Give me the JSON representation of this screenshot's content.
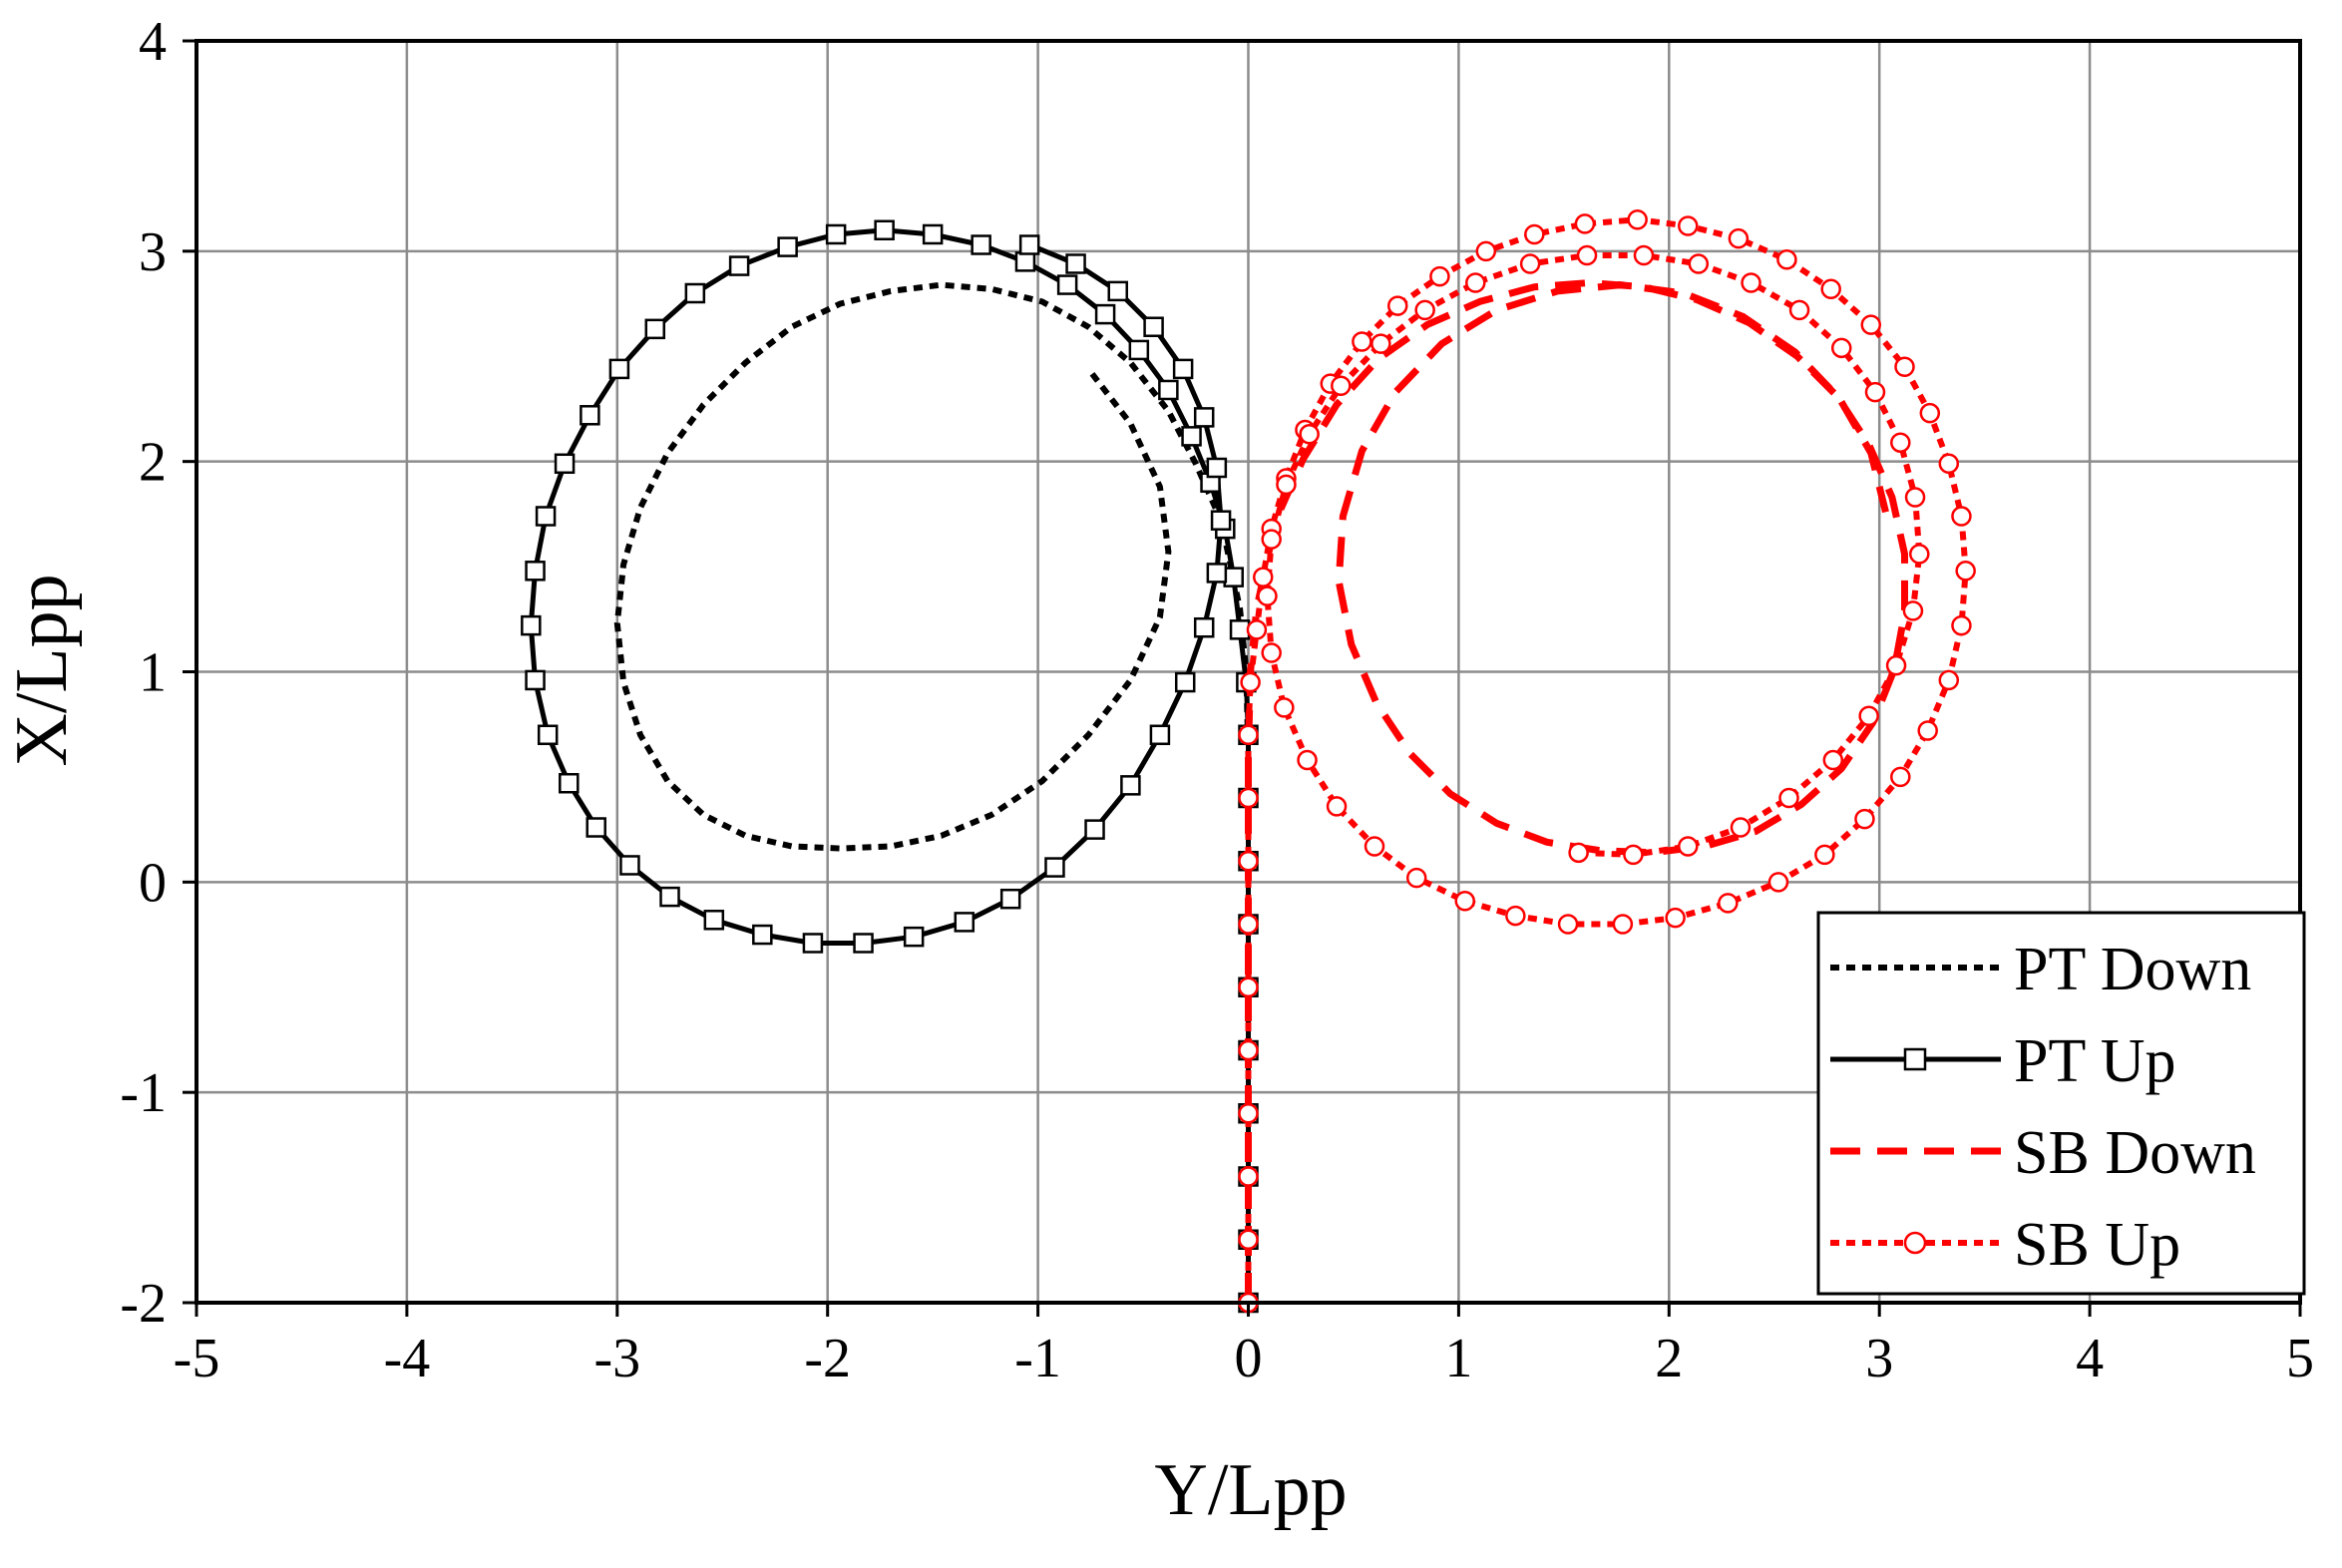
{
  "chart_data": {
    "type": "scatter",
    "title": "",
    "xlabel": "Y/Lpp",
    "ylabel": "X/Lpp",
    "xlim": [
      -5,
      5
    ],
    "ylim": [
      -2,
      4
    ],
    "xticks": [
      "-5",
      "-4",
      "-3",
      "-2",
      "-1",
      "0",
      "1",
      "2",
      "3",
      "4",
      "5"
    ],
    "yticks": [
      "-2",
      "-1",
      "0",
      "1",
      "2",
      "3",
      "4"
    ],
    "grid": true,
    "legend_position": "bottom-right",
    "series": [
      {
        "name": "PT Down",
        "color": "#000000",
        "line_style": "dotted",
        "marker": "none",
        "points": [
          [
            0,
            -2
          ],
          [
            0,
            -1
          ],
          [
            0,
            0
          ],
          [
            0,
            0.6
          ],
          [
            -0.01,
            1.0
          ],
          [
            -0.04,
            1.3
          ],
          [
            -0.13,
            1.72
          ],
          [
            -0.25,
            1.99
          ],
          [
            -0.38,
            2.24
          ],
          [
            -0.56,
            2.47
          ],
          [
            -0.76,
            2.64
          ],
          [
            -0.98,
            2.76
          ],
          [
            -1.22,
            2.82
          ],
          [
            -1.46,
            2.84
          ],
          [
            -1.7,
            2.81
          ],
          [
            -1.94,
            2.75
          ],
          [
            -2.17,
            2.64
          ],
          [
            -2.39,
            2.47
          ],
          [
            -2.59,
            2.27
          ],
          [
            -2.76,
            2.04
          ],
          [
            -2.89,
            1.78
          ],
          [
            -2.97,
            1.51
          ],
          [
            -3.0,
            1.23
          ],
          [
            -2.97,
            0.95
          ],
          [
            -2.89,
            0.7
          ],
          [
            -2.76,
            0.48
          ],
          [
            -2.59,
            0.32
          ],
          [
            -2.39,
            0.22
          ],
          [
            -2.17,
            0.17
          ],
          [
            -1.94,
            0.16
          ],
          [
            -1.7,
            0.17
          ],
          [
            -1.46,
            0.22
          ],
          [
            -1.22,
            0.32
          ],
          [
            -0.98,
            0.48
          ],
          [
            -0.76,
            0.7
          ],
          [
            -0.56,
            0.96
          ],
          [
            -0.42,
            1.26
          ],
          [
            -0.38,
            1.57
          ],
          [
            -0.42,
            1.88
          ],
          [
            -0.56,
            2.18
          ],
          [
            -0.76,
            2.44
          ]
        ]
      },
      {
        "name": "PT Up",
        "color": "#000000",
        "line_style": "solid",
        "marker": "square",
        "points": [
          [
            0,
            -2
          ],
          [
            0,
            -1.7
          ],
          [
            0,
            -1.4
          ],
          [
            0,
            -1.1
          ],
          [
            0,
            -0.8
          ],
          [
            0,
            -0.5
          ],
          [
            0,
            -0.2
          ],
          [
            0,
            0.1
          ],
          [
            0,
            0.4
          ],
          [
            0,
            0.7
          ],
          [
            -0.01,
            0.95
          ],
          [
            -0.04,
            1.2
          ],
          [
            -0.07,
            1.45
          ],
          [
            -0.11,
            1.68
          ],
          [
            -0.18,
            1.9
          ],
          [
            -0.27,
            2.12
          ],
          [
            -0.38,
            2.34
          ],
          [
            -0.52,
            2.53
          ],
          [
            -0.68,
            2.7
          ],
          [
            -0.86,
            2.84
          ],
          [
            -1.06,
            2.95
          ],
          [
            -1.27,
            3.03
          ],
          [
            -1.5,
            3.08
          ],
          [
            -1.73,
            3.1
          ],
          [
            -1.96,
            3.08
          ],
          [
            -2.19,
            3.02
          ],
          [
            -2.42,
            2.93
          ],
          [
            -2.63,
            2.8
          ],
          [
            -2.82,
            2.63
          ],
          [
            -2.99,
            2.44
          ],
          [
            -3.13,
            2.22
          ],
          [
            -3.25,
            1.99
          ],
          [
            -3.34,
            1.74
          ],
          [
            -3.39,
            1.48
          ],
          [
            -3.41,
            1.22
          ],
          [
            -3.39,
            0.96
          ],
          [
            -3.33,
            0.7
          ],
          [
            -3.23,
            0.47
          ],
          [
            -3.1,
            0.26
          ],
          [
            -2.94,
            0.08
          ],
          [
            -2.75,
            -0.07
          ],
          [
            -2.54,
            -0.18
          ],
          [
            -2.31,
            -0.25
          ],
          [
            -2.07,
            -0.29
          ],
          [
            -1.83,
            -0.29
          ],
          [
            -1.59,
            -0.26
          ],
          [
            -1.35,
            -0.19
          ],
          [
            -1.13,
            -0.08
          ],
          [
            -0.92,
            0.07
          ],
          [
            -0.73,
            0.25
          ],
          [
            -0.56,
            0.46
          ],
          [
            -0.42,
            0.7
          ],
          [
            -0.3,
            0.95
          ],
          [
            -0.21,
            1.21
          ],
          [
            -0.15,
            1.47
          ],
          [
            -0.13,
            1.72
          ],
          [
            -0.15,
            1.97
          ],
          [
            -0.21,
            2.21
          ],
          [
            -0.31,
            2.44
          ],
          [
            -0.45,
            2.64
          ],
          [
            -0.62,
            2.81
          ],
          [
            -0.82,
            2.94
          ],
          [
            -1.04,
            3.03
          ]
        ]
      },
      {
        "name": "SB Down",
        "color": "#ff0000",
        "line_style": "dashed",
        "marker": "none",
        "points": [
          [
            0,
            -2
          ],
          [
            0,
            -1
          ],
          [
            0,
            0
          ],
          [
            0,
            0.6
          ],
          [
            0.01,
            1.0
          ],
          [
            0.04,
            1.3
          ],
          [
            0.13,
            1.72
          ],
          [
            0.26,
            2.01
          ],
          [
            0.42,
            2.27
          ],
          [
            0.62,
            2.49
          ],
          [
            0.85,
            2.65
          ],
          [
            1.1,
            2.76
          ],
          [
            1.36,
            2.83
          ],
          [
            1.62,
            2.85
          ],
          [
            1.88,
            2.83
          ],
          [
            2.13,
            2.77
          ],
          [
            2.38,
            2.66
          ],
          [
            2.61,
            2.5
          ],
          [
            2.8,
            2.31
          ],
          [
            2.95,
            2.08
          ],
          [
            3.06,
            1.83
          ],
          [
            3.12,
            1.56
          ],
          [
            3.12,
            1.28
          ],
          [
            3.07,
            1.01
          ],
          [
            2.97,
            0.76
          ],
          [
            2.82,
            0.54
          ],
          [
            2.63,
            0.37
          ],
          [
            2.41,
            0.24
          ],
          [
            2.17,
            0.17
          ],
          [
            1.92,
            0.14
          ],
          [
            1.67,
            0.15
          ],
          [
            1.42,
            0.19
          ],
          [
            1.18,
            0.28
          ],
          [
            0.96,
            0.42
          ],
          [
            0.77,
            0.61
          ],
          [
            0.61,
            0.85
          ],
          [
            0.49,
            1.13
          ],
          [
            0.43,
            1.43
          ],
          [
            0.45,
            1.74
          ],
          [
            0.54,
            2.05
          ],
          [
            0.7,
            2.33
          ],
          [
            0.92,
            2.56
          ],
          [
            1.18,
            2.72
          ],
          [
            1.47,
            2.81
          ],
          [
            1.77,
            2.84
          ],
          [
            2.07,
            2.8
          ],
          [
            2.35,
            2.69
          ],
          [
            2.6,
            2.52
          ],
          [
            2.81,
            2.3
          ],
          [
            2.96,
            2.04
          ],
          [
            3.03,
            1.76
          ]
        ]
      },
      {
        "name": "SB Up",
        "color": "#ff0000",
        "line_style": "dotted",
        "marker": "circle",
        "points": [
          [
            0,
            -2
          ],
          [
            0,
            -1.7
          ],
          [
            0,
            -1.4
          ],
          [
            0,
            -1.1
          ],
          [
            0,
            -0.8
          ],
          [
            0,
            -0.5
          ],
          [
            0,
            -0.2
          ],
          [
            0,
            0.1
          ],
          [
            0,
            0.4
          ],
          [
            0,
            0.7
          ],
          [
            0.01,
            0.95
          ],
          [
            0.04,
            1.2
          ],
          [
            0.07,
            1.45
          ],
          [
            0.11,
            1.68
          ],
          [
            0.18,
            1.92
          ],
          [
            0.27,
            2.15
          ],
          [
            0.39,
            2.37
          ],
          [
            0.54,
            2.57
          ],
          [
            0.71,
            2.74
          ],
          [
            0.91,
            2.88
          ],
          [
            1.13,
            3.0
          ],
          [
            1.36,
            3.08
          ],
          [
            1.6,
            3.13
          ],
          [
            1.85,
            3.15
          ],
          [
            2.09,
            3.12
          ],
          [
            2.33,
            3.06
          ],
          [
            2.56,
            2.96
          ],
          [
            2.77,
            2.82
          ],
          [
            2.96,
            2.65
          ],
          [
            3.12,
            2.45
          ],
          [
            3.24,
            2.23
          ],
          [
            3.33,
            1.99
          ],
          [
            3.39,
            1.74
          ],
          [
            3.41,
            1.48
          ],
          [
            3.39,
            1.22
          ],
          [
            3.33,
            0.96
          ],
          [
            3.23,
            0.72
          ],
          [
            3.1,
            0.5
          ],
          [
            2.93,
            0.3
          ],
          [
            2.74,
            0.13
          ],
          [
            2.52,
            0.0
          ],
          [
            2.28,
            -0.1
          ],
          [
            2.03,
            -0.17
          ],
          [
            1.78,
            -0.2
          ],
          [
            1.52,
            -0.2
          ],
          [
            1.27,
            -0.16
          ],
          [
            1.03,
            -0.09
          ],
          [
            0.8,
            0.02
          ],
          [
            0.6,
            0.17
          ],
          [
            0.42,
            0.36
          ],
          [
            0.28,
            0.58
          ],
          [
            0.17,
            0.83
          ],
          [
            0.11,
            1.09
          ],
          [
            0.09,
            1.36
          ],
          [
            0.11,
            1.63
          ],
          [
            0.18,
            1.89
          ],
          [
            0.29,
            2.13
          ],
          [
            0.44,
            2.36
          ],
          [
            0.63,
            2.56
          ],
          [
            0.84,
            2.72
          ],
          [
            1.08,
            2.85
          ],
          [
            1.34,
            2.94
          ],
          [
            1.61,
            2.98
          ],
          [
            1.88,
            2.98
          ],
          [
            2.14,
            2.94
          ],
          [
            2.39,
            2.85
          ],
          [
            2.62,
            2.72
          ],
          [
            2.82,
            2.54
          ],
          [
            2.98,
            2.33
          ],
          [
            3.1,
            2.09
          ],
          [
            3.17,
            1.83
          ],
          [
            3.19,
            1.56
          ],
          [
            3.16,
            1.29
          ],
          [
            3.08,
            1.03
          ],
          [
            2.95,
            0.79
          ],
          [
            2.78,
            0.58
          ],
          [
            2.57,
            0.4
          ],
          [
            2.34,
            0.26
          ],
          [
            2.09,
            0.17
          ],
          [
            1.83,
            0.13
          ],
          [
            1.57,
            0.14
          ]
        ]
      }
    ]
  }
}
